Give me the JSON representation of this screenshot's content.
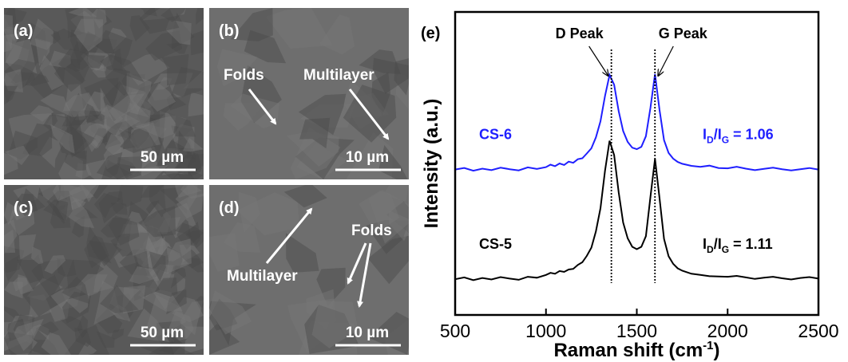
{
  "panels": [
    {
      "label": "(a)",
      "scale_bar": "50 µm"
    },
    {
      "label": "(b)",
      "scale_bar": "10 µm",
      "annotations": [
        "Folds",
        "Multilayer"
      ]
    },
    {
      "label": "(c)",
      "scale_bar": "50 µm"
    },
    {
      "label": "(d)",
      "scale_bar": "10 µm",
      "annotations": [
        "Multilayer",
        "Folds"
      ]
    }
  ],
  "chart_data": {
    "type": "line",
    "panel_label": "(e)",
    "x_label": "Raman shift (cm-1)",
    "y_label": "Intensity (a.u.)",
    "x": [
      500,
      550,
      600,
      650,
      700,
      750,
      800,
      850,
      900,
      950,
      1000,
      1025,
      1050,
      1075,
      1100,
      1125,
      1150,
      1175,
      1200,
      1225,
      1250,
      1275,
      1300,
      1325,
      1350,
      1375,
      1400,
      1425,
      1450,
      1475,
      1500,
      1525,
      1550,
      1575,
      1600,
      1625,
      1650,
      1675,
      1700,
      1725,
      1750,
      1800,
      1850,
      1900,
      1950,
      2000,
      2050,
      2100,
      2150,
      2200,
      2250,
      2300,
      2350,
      2400,
      2450,
      2500
    ],
    "series": [
      {
        "name": "CS-6",
        "color": "#1f1fff",
        "ratio_label": "ID/IG = 1.06",
        "values": [
          48.0,
          48.5,
          47.6,
          48.3,
          47.8,
          48.6,
          48.1,
          47.7,
          48.7,
          48.2,
          48.8,
          49.6,
          49.1,
          50.0,
          49.5,
          50.6,
          50.2,
          51.4,
          51.7,
          53.3,
          55.0,
          58.6,
          63.9,
          72.3,
          79.2,
          76.0,
          67.3,
          60.7,
          57.1,
          55.2,
          54.7,
          55.5,
          59.0,
          68.4,
          79.5,
          67.8,
          57.7,
          53.5,
          51.6,
          50.5,
          49.9,
          49.2,
          48.9,
          49.3,
          48.5,
          48.4,
          48.9,
          48.3,
          47.8,
          48.2,
          48.6,
          48.1,
          47.7,
          48.1,
          48.5,
          48.0
        ]
      },
      {
        "name": "CS-5",
        "color": "#000000",
        "ratio_label": "ID/IG = 1.11",
        "values": [
          11.8,
          12.4,
          11.5,
          12.2,
          11.7,
          12.5,
          12.0,
          11.6,
          12.6,
          12.3,
          13.2,
          13.9,
          13.6,
          14.5,
          14.2,
          15.0,
          15.2,
          16.5,
          17.4,
          19.5,
          22.2,
          27.6,
          35.2,
          47.6,
          57.5,
          52.8,
          40.5,
          30.5,
          25.3,
          22.5,
          21.7,
          22.5,
          26.0,
          39.0,
          51.5,
          38.7,
          25.1,
          19.4,
          16.9,
          15.4,
          14.6,
          13.6,
          13.2,
          12.8,
          12.7,
          12.6,
          12.9,
          12.4,
          11.9,
          12.3,
          12.6,
          12.1,
          11.7,
          12.2,
          12.5,
          12.0
        ]
      }
    ],
    "xlim": [
      500,
      2500
    ],
    "xticks": [
      500,
      1000,
      1500,
      2000,
      2500
    ],
    "ylim": [
      0,
      100
    ],
    "peak_markers": [
      {
        "label": "D Peak",
        "x": 1360
      },
      {
        "label": "G Peak",
        "x": 1600
      }
    ]
  }
}
